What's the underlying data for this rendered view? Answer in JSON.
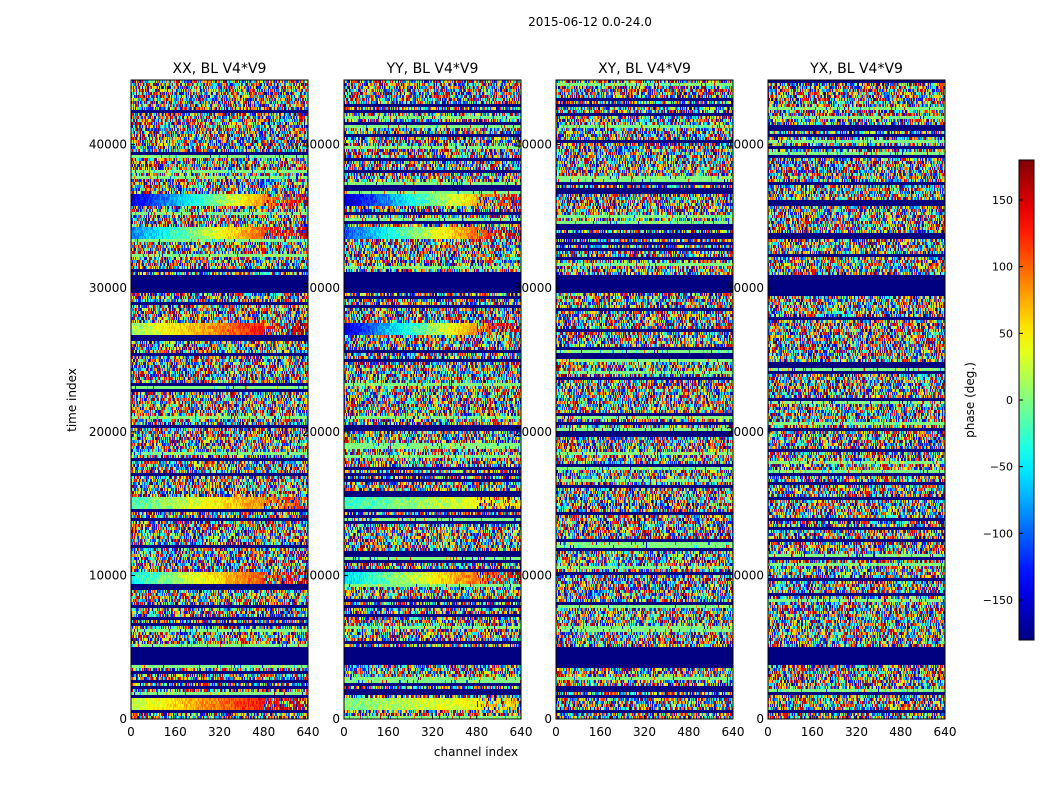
{
  "figure": {
    "suptitle": "2015-06-12 0.0-24.0",
    "ylabel": "time index",
    "xlabel": "channel index"
  },
  "colorbar": {
    "label": "phase (deg.)",
    "range": [
      -180,
      180
    ],
    "ticks": [
      150,
      100,
      50,
      0,
      -50,
      -100,
      -150
    ],
    "tick_labels": [
      "150",
      "100",
      "50",
      "0",
      "−50",
      "−100",
      "−150"
    ],
    "colormap": "jet"
  },
  "chart_data": [
    {
      "type": "heatmap",
      "title": "XX, BL V4*V9",
      "x_ticks": [
        0,
        160,
        320,
        480,
        640
      ],
      "y_ticks": [
        0,
        10000,
        20000,
        30000,
        40000
      ],
      "xlim": [
        0,
        640
      ],
      "ylim": [
        0,
        44500
      ],
      "coherent_bands": [
        {
          "y": 1000,
          "phase_start": 20,
          "phase_end": 170
        },
        {
          "y": 9800,
          "phase_start": -40,
          "phase_end": 160
        },
        {
          "y": 15000,
          "phase_start": -20,
          "phase_end": 120
        },
        {
          "y": 27200,
          "phase_start": 10,
          "phase_end": 170
        },
        {
          "y": 33900,
          "phase_start": -90,
          "phase_end": 170
        },
        {
          "y": 36200,
          "phase_start": -150,
          "phase_end": 160
        }
      ],
      "flagged_bands": [
        [
          3800,
          5100
        ],
        [
          29700,
          31000
        ],
        [
          33400,
          33800
        ]
      ]
    },
    {
      "type": "heatmap",
      "title": "YY, BL V4*V9",
      "x_ticks": [
        0,
        160,
        320,
        480,
        640
      ],
      "y_ticks": [
        0,
        10000,
        20000,
        30000,
        40000
      ],
      "xlim": [
        0,
        640
      ],
      "ylim": [
        0,
        44500
      ],
      "coherent_bands": [
        {
          "y": 1000,
          "phase_start": 0,
          "phase_end": 60
        },
        {
          "y": 9800,
          "phase_start": -60,
          "phase_end": 150
        },
        {
          "y": 15000,
          "phase_start": -30,
          "phase_end": 60
        },
        {
          "y": 27200,
          "phase_start": -150,
          "phase_end": 170
        },
        {
          "y": 33900,
          "phase_start": -110,
          "phase_end": 170
        },
        {
          "y": 36200,
          "phase_start": -160,
          "phase_end": 150
        }
      ],
      "flagged_bands": [
        [
          3800,
          5100
        ],
        [
          29700,
          31000
        ],
        [
          33400,
          33800
        ]
      ]
    },
    {
      "type": "heatmap",
      "title": "XY, BL V4*V9",
      "x_ticks": [
        0,
        160,
        320,
        480,
        640
      ],
      "y_ticks": [
        0,
        10000,
        20000,
        30000,
        40000
      ],
      "xlim": [
        0,
        640
      ],
      "ylim": [
        0,
        44500
      ],
      "coherent_bands": [],
      "flagged_bands": [
        [
          3800,
          5100
        ],
        [
          29700,
          31000
        ],
        [
          33400,
          33800
        ]
      ]
    },
    {
      "type": "heatmap",
      "title": "YX, BL V4*V9",
      "x_ticks": [
        0,
        160,
        320,
        480,
        640
      ],
      "y_ticks": [
        0,
        10000,
        20000,
        30000,
        40000
      ],
      "xlim": [
        0,
        640
      ],
      "ylim": [
        0,
        44500
      ],
      "coherent_bands": [],
      "flagged_bands": [
        [
          3800,
          5100
        ],
        [
          29700,
          31000
        ],
        [
          33400,
          33800
        ]
      ]
    }
  ]
}
